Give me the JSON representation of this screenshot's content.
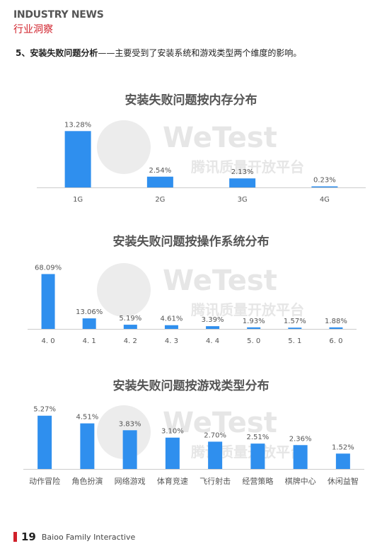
{
  "header": {
    "title_en": "INDUSTRY NEWS",
    "title_cn": "行业洞察"
  },
  "section": {
    "number": "5、",
    "heading": "安装失败问题分析",
    "dash": "——",
    "text": "主要受到了安装系统和游戏类型两个维度的影响。"
  },
  "watermark": {
    "brand": "WeTest",
    "subtitle": "腾讯质量开放平台"
  },
  "colors": {
    "bar": "#2f8fee",
    "accent": "#d0202a",
    "axis": "#cccccc",
    "label": "#555555"
  },
  "chart_data": [
    {
      "type": "bar",
      "title": "安装失败问题按内存分布",
      "categories": [
        "1G",
        "2G",
        "3G",
        "4G"
      ],
      "values": [
        13.28,
        2.54,
        2.13,
        0.23
      ],
      "labels": [
        "13.28%",
        "2.54%",
        "2.13%",
        "0.23%"
      ],
      "ylim": [
        0,
        14
      ],
      "grid": false,
      "legend": "none"
    },
    {
      "type": "bar",
      "title": "安装失败问题按操作系统分布",
      "categories": [
        "4. 0",
        "4. 1",
        "4. 2",
        "4. 3",
        "4. 4",
        "5. 0",
        "5. 1",
        "6. 0"
      ],
      "values": [
        68.09,
        13.06,
        5.19,
        4.61,
        3.39,
        1.93,
        1.57,
        1.88
      ],
      "labels": [
        "68.09%",
        "13.06%",
        "5.19%",
        "4.61%",
        "3.39%",
        "1.93%",
        "1.57%",
        "1.88%"
      ],
      "ylim": [
        0,
        72
      ],
      "grid": false,
      "legend": "none"
    },
    {
      "type": "bar",
      "title": "安装失败问题按游戏类型分布",
      "categories": [
        "动作冒险",
        "角色扮演",
        "网络游戏",
        "体育竞速",
        "飞行射击",
        "经营策略",
        "棋牌中心",
        "休闲益智"
      ],
      "values": [
        5.27,
        4.51,
        3.83,
        3.1,
        2.7,
        2.51,
        2.36,
        1.52
      ],
      "labels": [
        "5.27%",
        "4.51%",
        "3.83%",
        "3.10%",
        "2.70%",
        "2.51%",
        "2.36%",
        "1.52%"
      ],
      "ylim": [
        0,
        5.6
      ],
      "grid": false,
      "legend": "none"
    }
  ],
  "footer": {
    "page": "19",
    "company": "Baioo Family Interactive"
  }
}
